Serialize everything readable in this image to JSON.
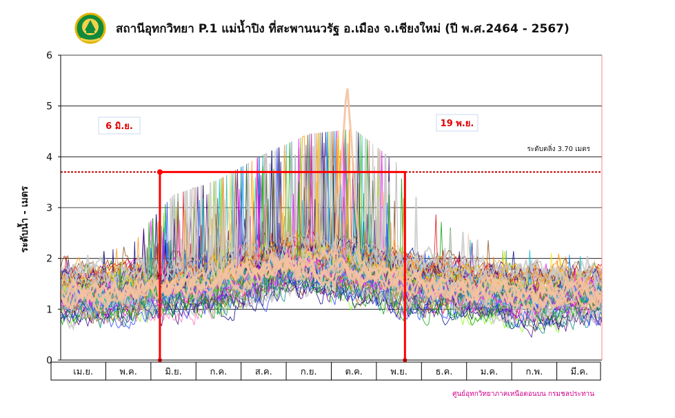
{
  "header": {
    "title": "สถานีอุทกวิทยา P.1 แม่น้ำปิง ที่สะพานนวรัฐ อ.เมือง จ.เชียงใหม่ (ปี พ.ศ.2464 - 2567)",
    "logo_caption": "กรมชลประทาน"
  },
  "chart_data": {
    "type": "line",
    "title": "สถานีอุทกวิทยา P.1 แม่น้ำปิง ที่สะพานนวรัฐ อ.เมือง จ.เชียงใหม่ (ปี พ.ศ.2464 - 2567)",
    "ylabel": "ระดับน้ำ - เมตร",
    "xlabel": "",
    "ylim": [
      0,
      6
    ],
    "yticks": [
      0,
      1,
      2,
      3,
      4,
      5,
      6
    ],
    "categories": [
      "เม.ย.",
      "พ.ค.",
      "มิ.ย.",
      "ก.ค.",
      "ส.ค.",
      "ก.ย.",
      "ต.ค.",
      "พ.ย.",
      "ธ.ค.",
      "ม.ค.",
      "ก.พ.",
      "มี.ค."
    ],
    "grid": true,
    "critical_level": {
      "value": 3.7,
      "label": "ระดับตลิ่ง 3.70 เมตร",
      "color": "#c00000"
    },
    "period_markers": [
      {
        "label": "6 มิ.ย.",
        "month_index": 2,
        "day": 6
      },
      {
        "label": "19 พ.ย.",
        "month_index": 7,
        "day": 19
      }
    ],
    "period_box_top": 3.7,
    "series_count_note": "",
    "envelope": {
      "months": [
        "เม.ย.",
        "พ.ค.",
        "มิ.ย.",
        "ก.ค.",
        "ส.ค.",
        "ก.ย.",
        "ต.ค.",
        "พ.ย.",
        "ธ.ค.",
        "ม.ค.",
        "ก.พ.",
        "มี.ค."
      ],
      "median": [
        1.3,
        1.35,
        1.45,
        1.55,
        1.75,
        1.9,
        1.75,
        1.55,
        1.45,
        1.35,
        1.3,
        1.3
      ],
      "upper": [
        1.8,
        2.0,
        3.0,
        3.3,
        3.8,
        4.2,
        4.3,
        3.6,
        2.4,
        2.1,
        1.9,
        1.8
      ],
      "lower": [
        0.4,
        0.4,
        0.5,
        0.7,
        0.9,
        0.9,
        0.8,
        0.6,
        0.5,
        0.4,
        0.3,
        0.3
      ],
      "peak": {
        "value": 5.3,
        "month_index": 6
      }
    }
  },
  "footer": {
    "source": "ศูนย์อุทกวิทยาภาคเหนือตอนบน กรมชลประทาน"
  },
  "colors": {
    "critical": "#c00000",
    "period_box": "#ff0000",
    "grid": "#000000",
    "source_text": "#d0008a",
    "right_border": "#ff8080"
  }
}
